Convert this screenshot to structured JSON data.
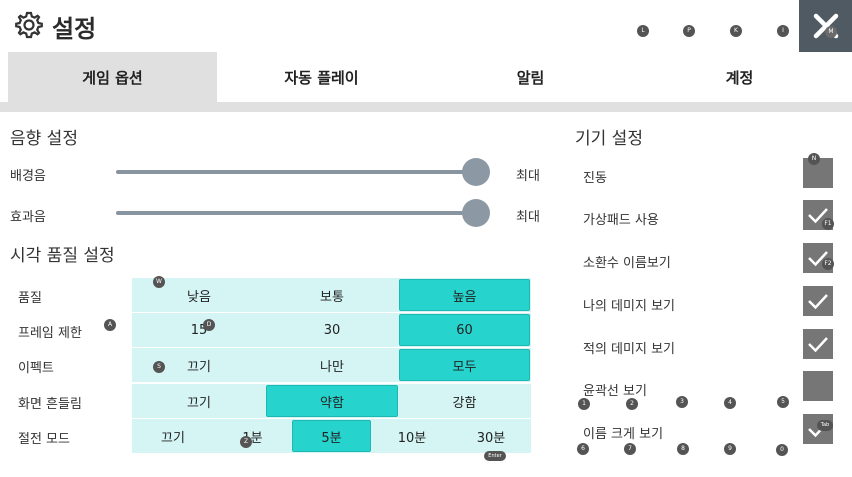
{
  "header": {
    "title": "설정"
  },
  "shortcut_keys": {
    "l": "L",
    "p": "P",
    "k": "K",
    "i": "I",
    "m": "M",
    "n": "N",
    "f1": "F1",
    "f2": "F2",
    "w": "W",
    "a": "A",
    "d": "D",
    "s": "S",
    "z": "Z",
    "enter": "Enter",
    "tab": "Tab",
    "n1": "1",
    "n2": "2",
    "n3": "3",
    "n4": "4",
    "n5": "5",
    "n6": "6",
    "n7": "7",
    "n8": "8",
    "n9": "9",
    "n0": "0"
  },
  "tabs": [
    {
      "label": "게임 옵션",
      "active": true
    },
    {
      "label": "자동 플레이",
      "active": false
    },
    {
      "label": "알림",
      "active": false
    },
    {
      "label": "계정",
      "active": false
    }
  ],
  "sound": {
    "title": "음향 설정",
    "bgm": {
      "label": "배경음",
      "value_label": "최대",
      "level": 1.0
    },
    "sfx": {
      "label": "효과음",
      "value_label": "최대",
      "level": 1.0
    }
  },
  "visual": {
    "title": "시각 품질 설정",
    "quality": {
      "label": "품질",
      "options": [
        "낮음",
        "보통",
        "높음"
      ],
      "selected": 2
    },
    "framerate": {
      "label": "프레임 제한",
      "options": [
        "15",
        "30",
        "60"
      ],
      "selected": 2
    },
    "effect": {
      "label": "이펙트",
      "options": [
        "끄기",
        "나만",
        "모두"
      ],
      "selected": 2
    },
    "shake": {
      "label": "화면 흔들림",
      "options": [
        "끄기",
        "약함",
        "강함"
      ],
      "selected": 1
    },
    "powersave": {
      "label": "절전 모드",
      "options": [
        "끄기",
        "1분",
        "5분",
        "10분",
        "30분"
      ],
      "selected": 2
    }
  },
  "device": {
    "title": "기기 설정",
    "items": [
      {
        "label": "진동",
        "checked": false
      },
      {
        "label": "가상패드 사용",
        "checked": true
      },
      {
        "label": "소환수 이름보기",
        "checked": true
      },
      {
        "label": "나의 데미지 보기",
        "checked": true
      },
      {
        "label": "적의 데미지 보기",
        "checked": true
      },
      {
        "label": "윤곽선 보기",
        "checked": false
      },
      {
        "label": "이름 크게 보기",
        "checked": true
      }
    ]
  },
  "colors": {
    "selected": "#26d3cd",
    "row_bg": "#d5f5f5",
    "close_bg": "#4f5a63",
    "checkbox": "#767676"
  }
}
